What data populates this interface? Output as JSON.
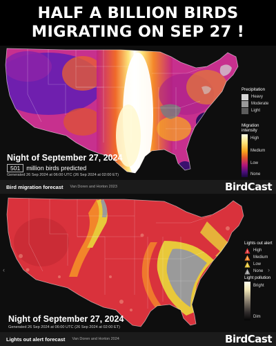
{
  "headline": {
    "line1": "HALF A BILLION BIRDS",
    "line2": "MIGRATING ON SEP 27 !"
  },
  "migration_forecast": {
    "night_title": "Night of September 27, 2024",
    "count_value": "501",
    "count_label": "million birds predicted",
    "generated": "Generated 26 Sep 2024 at 06:00 UTC (26 Sep 2024 at 02:00 ET)",
    "footer_title": "Bird migration forecast",
    "footer_credit": "Van Doren and Horton 2023",
    "brand": "BirdCast",
    "legend": {
      "precip_title": "Precipitation",
      "precip_items": [
        "Heavy",
        "Moderate",
        "Light"
      ],
      "precip_colors": [
        "#d6d6d6",
        "#9a9a9a",
        "#5c5c5c"
      ],
      "intensity_title": "Migration intensity",
      "intensity_items": [
        "High",
        "Medium",
        "Low",
        "None"
      ],
      "intensity_colors": [
        "#fffde8",
        "#f7a21b",
        "#b3157a",
        "#1a0840"
      ]
    }
  },
  "lights_out_forecast": {
    "night_title": "Night of September 27, 2024",
    "generated": "Generated 26 Sep 2024 at 06:00 UTC (26 Sep 2024 at 02:00 ET)",
    "footer_title": "Lights out alert forecast",
    "footer_credit": "Van Doren and Horton 2024",
    "brand": "BirdCast",
    "legend": {
      "alert_title": "Lights out alert",
      "alert_items": [
        "High",
        "Medium",
        "Low",
        "None"
      ],
      "alert_colors": [
        "#e0353a",
        "#f2852a",
        "#e8c83a",
        "#9a9a9a"
      ],
      "pollution_title": "Light pollution",
      "pollution_items": [
        "Bright",
        "Dim"
      ]
    }
  },
  "nav": {
    "prev_icon": "chevron-left-icon",
    "next_icon": "chevron-right-icon"
  }
}
